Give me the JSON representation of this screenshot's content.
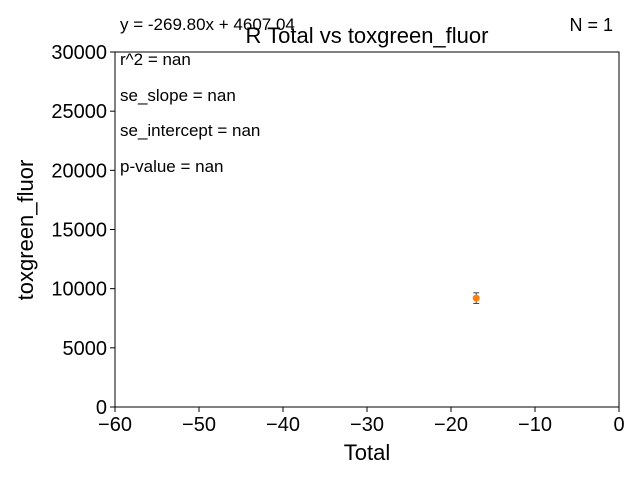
{
  "chart_data": {
    "type": "scatter",
    "title": "R Total vs toxgreen_fluor",
    "xlabel": "Total",
    "ylabel": "toxgreen_fluor",
    "xlim": [
      -60,
      0
    ],
    "ylim": [
      0,
      30000
    ],
    "x_ticks": [
      -60,
      -50,
      -40,
      -30,
      -20,
      -10,
      0
    ],
    "x_tick_labels": [
      "−60",
      "−50",
      "−40",
      "−30",
      "−20",
      "−10",
      "0"
    ],
    "y_ticks": [
      0,
      5000,
      10000,
      15000,
      20000,
      25000,
      30000
    ],
    "y_tick_labels": [
      "0",
      "5000",
      "10000",
      "15000",
      "20000",
      "25000",
      "30000"
    ],
    "grid": false,
    "series": [
      {
        "points": [
          {
            "x": -17,
            "y": 9200,
            "yerr": 450
          }
        ],
        "color": "#ff7f0e"
      }
    ],
    "annotations": {
      "equation": "y = -269.80x + 4607.04",
      "count": "N = 1",
      "stats": [
        "r^2 = nan",
        "se_slope = nan",
        "se_intercept = nan",
        "p-value = nan"
      ]
    }
  }
}
